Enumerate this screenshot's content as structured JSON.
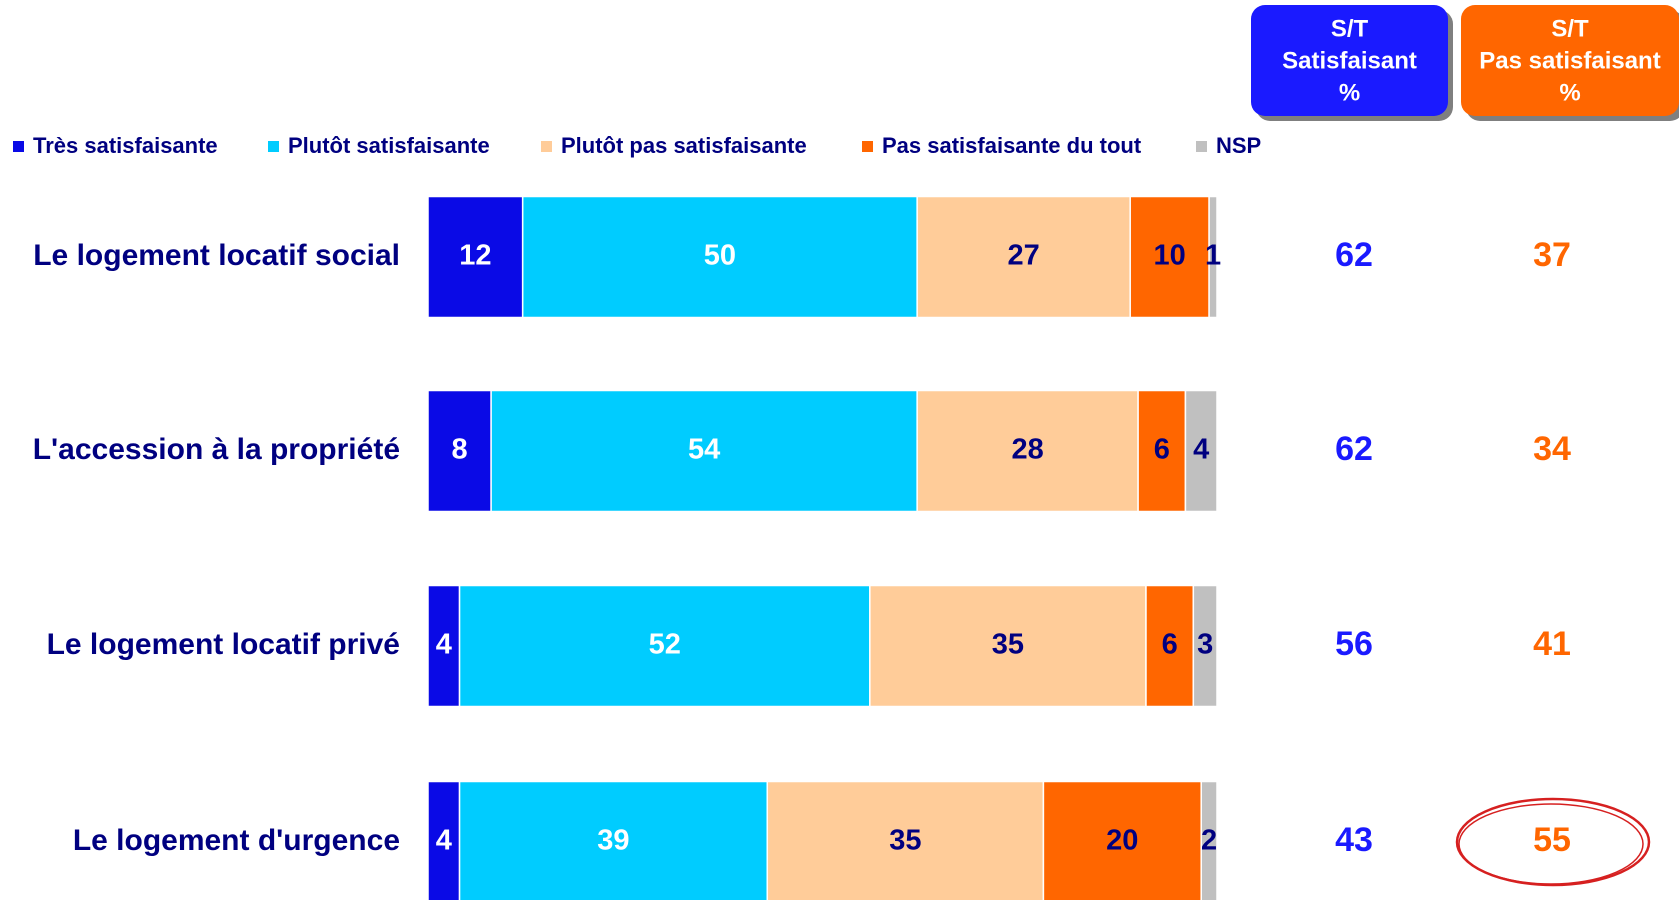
{
  "chart_data": {
    "type": "stacked_barh",
    "categories": [
      "Le logement locatif social",
      "L'accession à la propriété",
      "Le logement locatif privé",
      "Le logement d'urgence"
    ],
    "series": [
      {
        "name": "Très satisfaisante",
        "color": "#0a0ae6",
        "label_color": "#ffffff",
        "values": [
          12,
          8,
          4,
          4
        ]
      },
      {
        "name": "Plutôt satisfaisante",
        "color": "#00ccff",
        "label_color": "#ffffff",
        "values": [
          50,
          54,
          52,
          39
        ]
      },
      {
        "name": "Plutôt pas satisfaisante",
        "color": "#ffcc99",
        "label_color": "#000080",
        "values": [
          27,
          28,
          35,
          35
        ]
      },
      {
        "name": "Pas satisfaisante du tout",
        "color": "#ff6600",
        "label_color": "#000080",
        "values": [
          10,
          6,
          6,
          20
        ]
      },
      {
        "name": "NSP",
        "color": "#c0c0c0",
        "label_color": "#000080",
        "values": [
          1,
          4,
          3,
          2
        ]
      }
    ],
    "xlim": [
      0,
      100
    ],
    "summary_columns": [
      {
        "header": [
          "S/T",
          "Satisfaisant",
          "%"
        ],
        "color": "#1a1aff",
        "values": [
          62,
          62,
          56,
          43
        ]
      },
      {
        "header": [
          "S/T",
          "Pas satisfaisant",
          "%"
        ],
        "color": "#ff6600",
        "values": [
          37,
          34,
          41,
          55
        ]
      }
    ]
  }
}
